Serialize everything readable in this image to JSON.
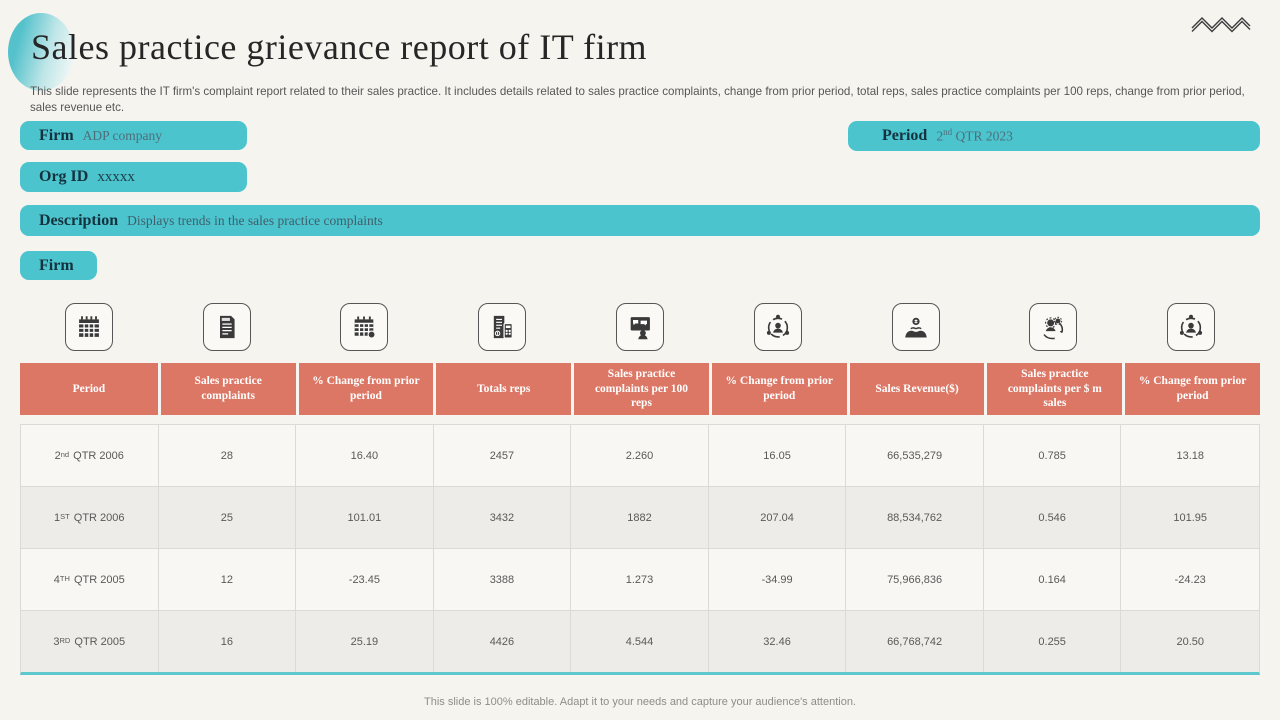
{
  "slide": {
    "title": "Sales practice grievance report of IT firm",
    "subtitle": "This slide represents the IT firm's complaint report related to their sales practice. It includes details related to sales practice complaints, change from prior period, total reps, sales practice complaints per 100 reps, change from prior period, sales revenue etc.",
    "footer": "This slide is 100% editable. Adapt it to your needs and capture your audience's attention.",
    "accent_teal": "#4cc4ce",
    "accent_salmon": "#dc7765"
  },
  "badges": {
    "firm": {
      "label": "Firm",
      "value": "ADP company"
    },
    "period": {
      "label": "Period",
      "num": "2",
      "ord": "nd",
      "rest": " QTR 2023"
    },
    "org_id": {
      "label": "Org ID",
      "value": "xxxxx"
    },
    "description": {
      "label": "Description",
      "value": "Displays trends in the sales practice complaints"
    },
    "firm_section": {
      "label": "Firm"
    }
  },
  "table": {
    "icons": [
      "calendar-icon",
      "report-document-icon",
      "calendar-date-icon",
      "invoice-calculator-icon",
      "presentation-feedback-icon",
      "user-orbit-icon",
      "hands-money-icon",
      "user-gears-sync-icon",
      "user-orbit-icon"
    ],
    "columns": [
      {
        "label": "Period"
      },
      {
        "label": "Sales practice complaints"
      },
      {
        "label": "% Change from prior period"
      },
      {
        "label": "Totals reps"
      },
      {
        "label": "Sales practice complaints per 100 reps"
      },
      {
        "label": "% Change from prior period"
      },
      {
        "label": "Sales Revenue($)"
      },
      {
        "label": "Sales practice complaints per $ m sales"
      },
      {
        "label": "% Change from prior period"
      }
    ],
    "rows": [
      {
        "period": {
          "num": "2",
          "ord": "nd",
          "rest": "QTR 2006"
        },
        "values": [
          "28",
          "16.40",
          "2457",
          "2.260",
          "16.05",
          "66,535,279",
          "0.785",
          "13.18"
        ]
      },
      {
        "period": {
          "num": "1",
          "ord": "ST",
          "rest": "QTR 2006"
        },
        "values": [
          "25",
          "101.01",
          "3432",
          "1882",
          "207.04",
          "88,534,762",
          "0.546",
          "101.95"
        ]
      },
      {
        "period": {
          "num": "4",
          "ord": "TH",
          "rest": "QTR 2005"
        },
        "values": [
          "12",
          "-23.45",
          "3388",
          "1.273",
          "-34.99",
          "75,966,836",
          "0.164",
          "-24.23"
        ]
      },
      {
        "period": {
          "num": "3",
          "ord": "RD",
          "rest": "QTR 2005"
        },
        "values": [
          "16",
          "25.19",
          "4426",
          "4.544",
          "32.46",
          "66,768,742",
          "0.255",
          "20.50"
        ]
      }
    ]
  }
}
